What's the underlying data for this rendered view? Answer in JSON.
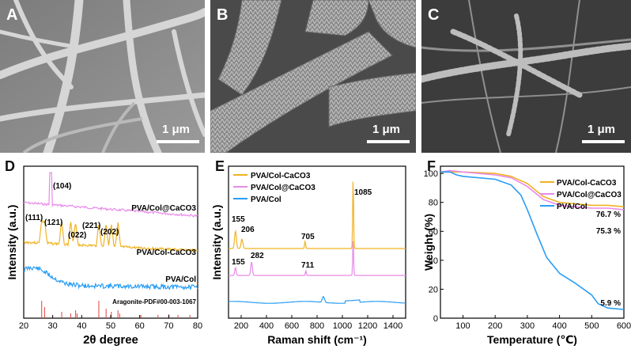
{
  "panels": {
    "A": {
      "label": "A",
      "scale": "1 μm"
    },
    "B": {
      "label": "B",
      "scale": "1 μm"
    },
    "C": {
      "label": "C",
      "scale": "1 μm"
    },
    "D": {
      "label": "D"
    },
    "E": {
      "label": "E"
    },
    "F": {
      "label": "F"
    }
  },
  "colors": {
    "orange": "#F0B323",
    "pink": "#E88AE8",
    "blue": "#2A9DF4",
    "red": "#E04040"
  },
  "chart_data": [
    {
      "panel": "D",
      "type": "line",
      "xlabel": "2θ degree",
      "ylabel": "Intensity (a.u.)",
      "xlim": [
        20,
        80
      ],
      "xticks": [
        "20",
        "30",
        "40",
        "50",
        "60",
        "70",
        "80"
      ],
      "series": [
        {
          "name": "PVA/Col@CaCO3",
          "color": "#E88AE8",
          "peak_x": 29.4
        },
        {
          "name": "PVA/Col-CaCO3",
          "color": "#F0B323",
          "peak_x": [
            26.2,
            27.2,
            33.1,
            36.2,
            37.9,
            45.9,
            48.4,
            50.2,
            52.5
          ]
        },
        {
          "name": "PVA/Col",
          "color": "#2A9DF4",
          "broad_center_x": 23
        }
      ],
      "reference": {
        "name": "Aragonite-PDF#00-003-1067",
        "color": "#E04040"
      },
      "annotations": [
        "(104)",
        "(111)",
        "(121)",
        "(022)",
        "(221)",
        "(202)"
      ]
    },
    {
      "panel": "E",
      "type": "line",
      "xlabel": "Raman shift (cm⁻¹)",
      "ylabel": "Intensity (a.u.)",
      "xlim": [
        100,
        1500
      ],
      "xticks": [
        "200",
        "400",
        "600",
        "800",
        "1000",
        "1200",
        "1400"
      ],
      "series": [
        {
          "name": "PVA/Col-CaCO3",
          "color": "#F0B323",
          "peaks": [
            155,
            206,
            705,
            1085
          ]
        },
        {
          "name": "PVA/Col@CaCO3",
          "color": "#E88AE8",
          "peaks": [
            155,
            282,
            711,
            1085
          ]
        },
        {
          "name": "PVA/Col",
          "color": "#2A9DF4",
          "peaks": [
            850
          ]
        }
      ],
      "annotations": [
        "155",
        "206",
        "705",
        "1085",
        "155",
        "282",
        "711"
      ]
    },
    {
      "panel": "F",
      "type": "line",
      "xlabel": "Temperature (℃)",
      "ylabel": "Weight (%)",
      "xlim": [
        30,
        600
      ],
      "ylim": [
        0,
        105
      ],
      "xticks": [
        "100",
        "200",
        "300",
        "400",
        "500",
        "600"
      ],
      "yticks": [
        "0",
        "20",
        "40",
        "60",
        "80",
        "100"
      ],
      "series": [
        {
          "name": "PVA/Col-CaCO3",
          "color": "#F0B323",
          "x": [
            30,
            60,
            100,
            200,
            250,
            300,
            350,
            400,
            450,
            500,
            550,
            600
          ],
          "y": [
            101,
            101,
            101,
            100,
            98,
            93,
            84,
            80,
            79,
            78,
            78,
            77
          ]
        },
        {
          "name": "PVA/Col@CaCO3",
          "color": "#E88AE8",
          "x": [
            30,
            60,
            100,
            200,
            250,
            300,
            350,
            400,
            450,
            500,
            550,
            600
          ],
          "y": [
            101,
            102,
            101,
            99,
            97,
            91,
            82,
            78,
            77,
            76,
            76,
            75
          ]
        },
        {
          "name": "PVA/Col",
          "color": "#2A9DF4",
          "x": [
            30,
            60,
            80,
            100,
            200,
            250,
            280,
            300,
            330,
            360,
            400,
            450,
            500,
            520,
            550,
            600
          ],
          "y": [
            101,
            101,
            99,
            98,
            96,
            92,
            85,
            75,
            58,
            42,
            31,
            24,
            16,
            10,
            7,
            6
          ]
        }
      ],
      "annotations": [
        "76.7 %",
        "75.3 %",
        "5.9 %"
      ]
    }
  ]
}
